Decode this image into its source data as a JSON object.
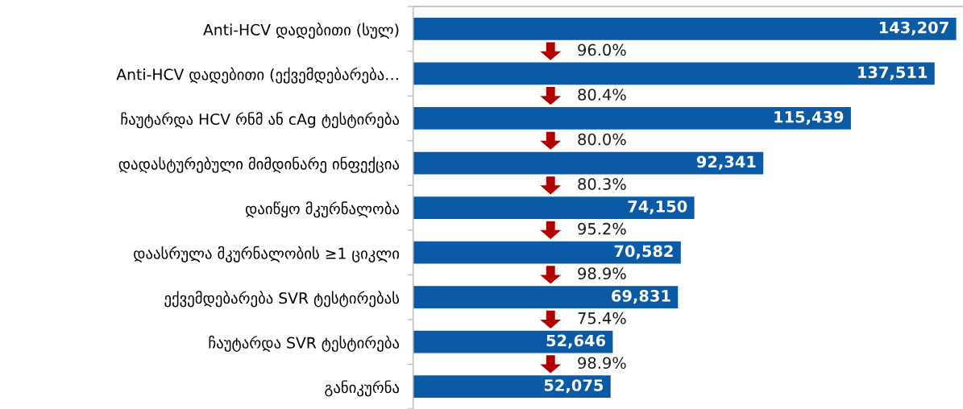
{
  "chart_data": {
    "type": "bar",
    "orientation": "horizontal",
    "categories": [
      "Anti-HCV დადებითი (სულ)",
      "Anti-HCV დადებითი (ექვემდებარება…",
      "ჩაუტარდა HCV რნმ ან cAg ტესტირება",
      "დადასტურებული მიმდინარე ინფექცია",
      "დაიწყო მკურნალობა",
      "დაასრულა მკურნალობის ≥1 ციკლი",
      "ექვემდებარება SVR ტესტირებას",
      "ჩაუტარდა SVR ტესტირება",
      "განიკურნა"
    ],
    "values": [
      143207,
      137511,
      115439,
      92341,
      74150,
      70582,
      69831,
      52646,
      52075
    ],
    "value_labels": [
      "143,207",
      "137,511",
      "115,439",
      "92,341",
      "74,150",
      "70,582",
      "69,831",
      "52,646",
      "52,075"
    ],
    "color": "#0a5aa6",
    "xlim": [
      0,
      145000
    ],
    "tick_labels": "y",
    "annotations": [
      "96.0%",
      "80.4%",
      "80.0%",
      "80.3%",
      "95.2%",
      "98.9%",
      "75.4%",
      "98.9%"
    ]
  }
}
